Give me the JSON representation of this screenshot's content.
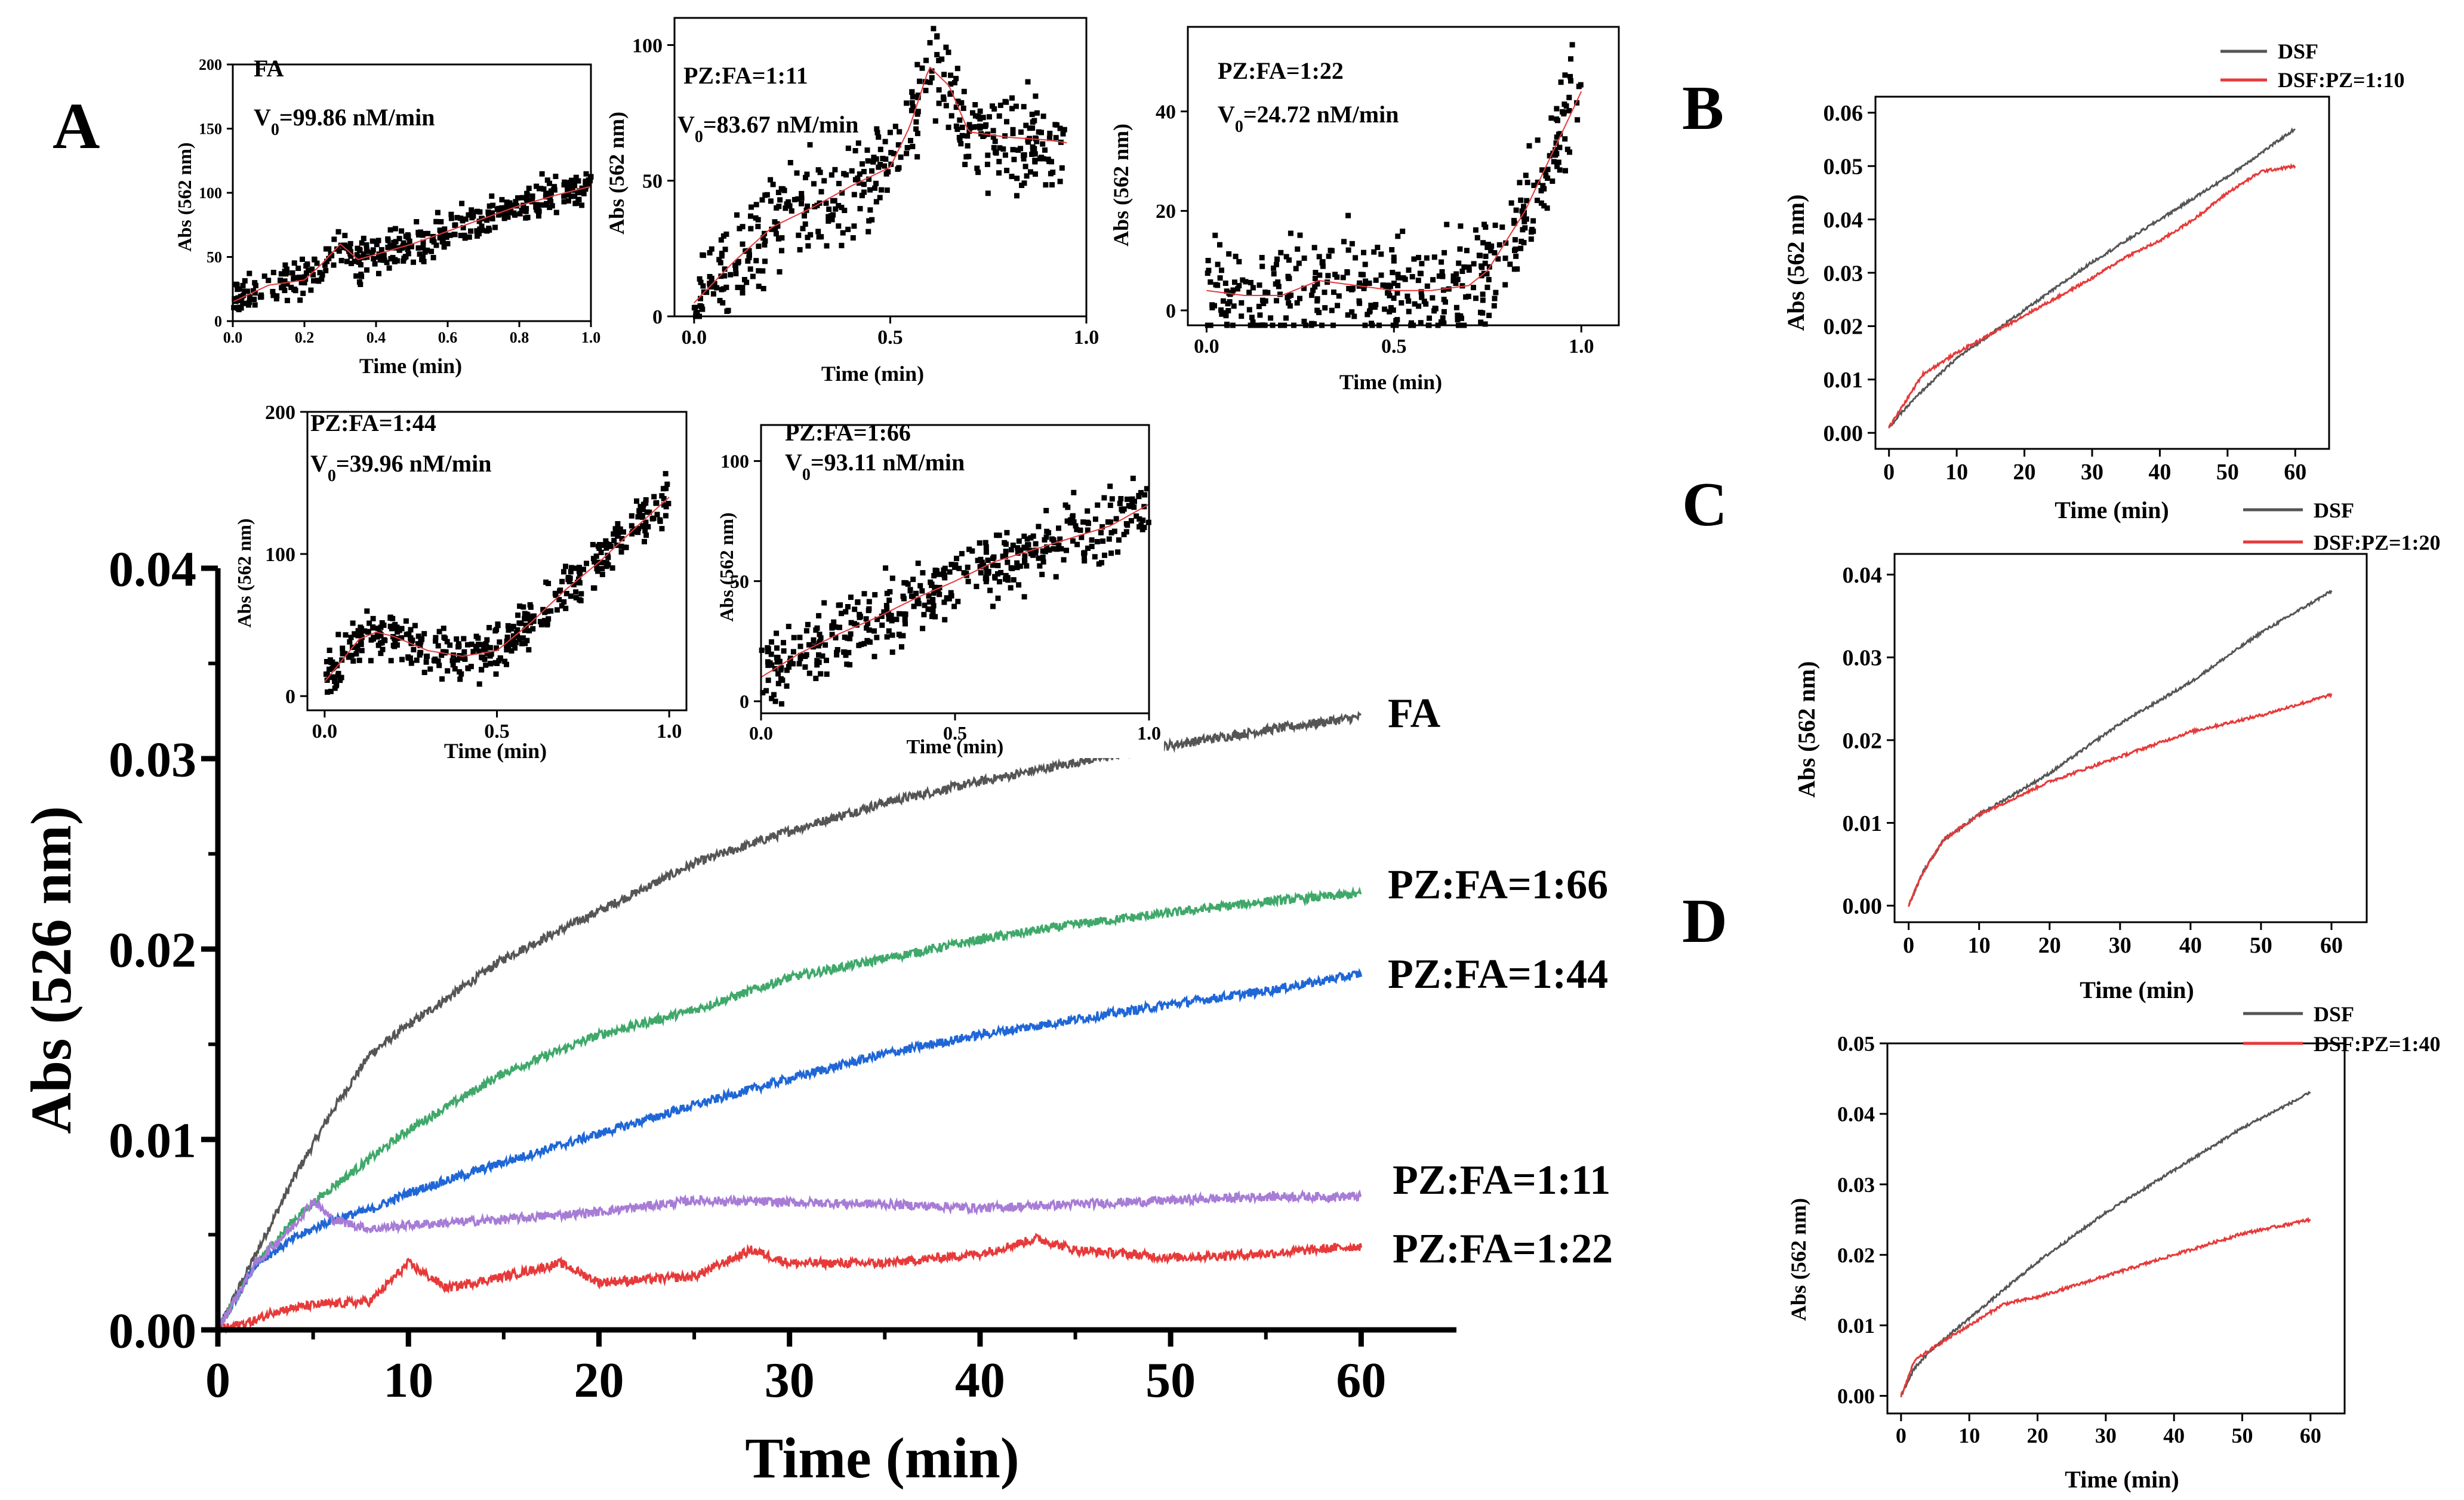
{
  "figure": {
    "panel_labels": [
      "A",
      "B",
      "C",
      "D"
    ]
  },
  "chart_data": [
    {
      "id": "main",
      "type": "line",
      "title": "",
      "xlabel": "Time (min)",
      "ylabel": "Abs (526 nm)",
      "xlim": [
        0,
        65
      ],
      "ylim": [
        0,
        0.04
      ],
      "xticks": [
        "0",
        "10",
        "20",
        "30",
        "40",
        "50",
        "60"
      ],
      "yticks": [
        "0.00",
        "0.01",
        "0.02",
        "0.03",
        "0.04"
      ],
      "series": [
        {
          "name": "FA",
          "color": "#555555",
          "x": [
            0,
            2,
            4,
            6,
            8,
            10,
            15,
            20,
            25,
            30,
            35,
            40,
            45,
            50,
            55,
            60
          ],
          "y": [
            0,
            0.004,
            0.008,
            0.0115,
            0.0145,
            0.016,
            0.0195,
            0.022,
            0.0245,
            0.0262,
            0.0277,
            0.0288,
            0.0298,
            0.0307,
            0.0315,
            0.0322
          ]
        },
        {
          "name": "PZ:FA=1:66",
          "color": "#3fa86a",
          "x": [
            0,
            2,
            4,
            6,
            8,
            10,
            15,
            20,
            25,
            30,
            35,
            40,
            45,
            50,
            55,
            60
          ],
          "y": [
            0,
            0.0035,
            0.0058,
            0.0075,
            0.009,
            0.0105,
            0.0135,
            0.0155,
            0.0168,
            0.0185,
            0.0195,
            0.0205,
            0.0213,
            0.0219,
            0.0225,
            0.0229
          ]
        },
        {
          "name": "PZ:FA=1:44",
          "color": "#1f66d6",
          "x": [
            0,
            2,
            4,
            6,
            8,
            10,
            15,
            20,
            25,
            30,
            35,
            40,
            45,
            50,
            55,
            60
          ],
          "y": [
            0,
            0.0035,
            0.0048,
            0.0058,
            0.0063,
            0.0072,
            0.0088,
            0.0103,
            0.0118,
            0.0132,
            0.0145,
            0.0155,
            0.0163,
            0.0171,
            0.0178,
            0.0187
          ]
        },
        {
          "name": "PZ:FA=1:11",
          "color": "#a77cd6",
          "x": [
            0,
            2,
            4,
            5,
            6,
            8,
            10,
            15,
            20,
            25,
            30,
            35,
            40,
            45,
            50,
            55,
            60
          ],
          "y": [
            0,
            0.0035,
            0.0055,
            0.0068,
            0.0058,
            0.0053,
            0.0055,
            0.0058,
            0.0062,
            0.0068,
            0.0067,
            0.0066,
            0.0064,
            0.0066,
            0.0068,
            0.007,
            0.007
          ]
        },
        {
          "name": "PZ:FA=1:22",
          "color": "#e63a3a",
          "x": [
            0,
            2,
            3,
            5,
            8,
            10,
            12,
            15,
            18,
            20,
            25,
            28,
            30,
            35,
            40,
            43,
            45,
            50,
            55,
            60
          ],
          "y": [
            0,
            0.0005,
            0.001,
            0.0013,
            0.0015,
            0.0035,
            0.0022,
            0.0028,
            0.0035,
            0.0025,
            0.0028,
            0.0042,
            0.0035,
            0.0035,
            0.004,
            0.0048,
            0.0042,
            0.0038,
            0.004,
            0.0044
          ]
        }
      ],
      "labels": [
        "FA",
        "PZ:FA=1:66",
        "PZ:FA=1:44",
        "PZ:FA=1:11",
        "PZ:FA=1:22"
      ]
    },
    {
      "id": "inset_fa",
      "type": "scatter",
      "title": "FA",
      "annotation_prefix": "V",
      "annotation_sub": "0",
      "annotation_value": "=99.86 nM/min",
      "xlabel": "Time (min)",
      "ylabel": "Abs (562 nm)",
      "xlim": [
        0,
        1
      ],
      "ylim": [
        0,
        200
      ],
      "xticks": [
        "0.0",
        "0.2",
        "0.4",
        "0.6",
        "0.8",
        "1.0"
      ],
      "yticks": [
        "0",
        "50",
        "100",
        "150",
        "200"
      ],
      "trend_x": [
        0,
        0.1,
        0.2,
        0.25,
        0.3,
        0.35,
        0.4,
        0.5,
        0.6,
        0.7,
        0.8,
        0.9,
        1.0
      ],
      "trend_y": [
        15,
        28,
        32,
        45,
        60,
        48,
        52,
        60,
        70,
        80,
        90,
        98,
        105
      ],
      "noise": 9
    },
    {
      "id": "inset_11",
      "type": "scatter",
      "title": "PZ:FA=1:11",
      "annotation_prefix": "V",
      "annotation_sub": "0",
      "annotation_value": "=83.67 nM/min",
      "xlabel": "Time (min)",
      "ylabel": "Abs (562 nm)",
      "xlim": [
        -0.05,
        1.0
      ],
      "ylim": [
        0,
        110
      ],
      "xticks": [
        "0.0",
        "0.5",
        "1.0"
      ],
      "yticks": [
        "0",
        "50",
        "100"
      ],
      "tick_values_x": [
        0,
        0.5,
        1.0
      ],
      "tick_values_y": [
        0,
        50,
        100
      ],
      "trend_x": [
        0,
        0.1,
        0.2,
        0.3,
        0.4,
        0.5,
        0.55,
        0.6,
        0.65,
        0.7,
        0.8,
        0.9,
        0.95
      ],
      "trend_y": [
        5,
        20,
        33,
        40,
        48,
        55,
        70,
        92,
        85,
        68,
        66,
        65,
        64
      ],
      "noise": 11
    },
    {
      "id": "inset_22",
      "type": "scatter",
      "title": "PZ:FA=1:22",
      "annotation_prefix": "V",
      "annotation_sub": "0",
      "annotation_value": "=24.72 nM/min",
      "xlabel": "Time (min)",
      "ylabel": "Abs (562 nm)",
      "xlim": [
        -0.05,
        1.1
      ],
      "ylim": [
        -3,
        57
      ],
      "xticks": [
        "0.0",
        "0.5",
        "1.0"
      ],
      "yticks": [
        "0",
        "20",
        "40"
      ],
      "tick_values_x": [
        0,
        0.5,
        1.0
      ],
      "tick_values_y": [
        0,
        20,
        40
      ],
      "trend_x": [
        0,
        0.1,
        0.2,
        0.3,
        0.4,
        0.5,
        0.6,
        0.7,
        0.75,
        0.8,
        0.85,
        0.9,
        0.95,
        1.0
      ],
      "trend_y": [
        4,
        3,
        3,
        6,
        5,
        4,
        4,
        5,
        8,
        14,
        20,
        28,
        36,
        44
      ],
      "noise": 7
    },
    {
      "id": "inset_44",
      "type": "scatter",
      "title": "PZ:FA=1:44",
      "annotation_prefix": "V",
      "annotation_sub": "0",
      "annotation_value": "=39.96 nM/min",
      "xlabel": "Time (min)",
      "ylabel": "Abs (562 nm)",
      "xlim": [
        -0.05,
        1.05
      ],
      "ylim": [
        -10,
        200
      ],
      "xticks": [
        "0.0",
        "0.5",
        "1.0"
      ],
      "yticks": [
        "0",
        "100",
        "200"
      ],
      "tick_values_x": [
        0,
        0.5,
        1.0
      ],
      "tick_values_y": [
        0,
        100,
        200
      ],
      "trend_x": [
        0,
        0.05,
        0.1,
        0.15,
        0.2,
        0.3,
        0.4,
        0.5,
        0.6,
        0.7,
        0.8,
        0.9,
        1.0
      ],
      "trend_y": [
        10,
        25,
        40,
        45,
        42,
        32,
        28,
        32,
        52,
        75,
        95,
        118,
        140
      ],
      "noise": 10
    },
    {
      "id": "inset_66",
      "type": "scatter",
      "title": "PZ:FA=1:66",
      "annotation_prefix": "V",
      "annotation_sub": "0",
      "annotation_value": "=93.11 nM/min",
      "xlabel": "Time (min)",
      "ylabel": "Abs (562 nm)",
      "xlim": [
        0,
        1.0
      ],
      "ylim": [
        -5,
        115
      ],
      "xticks": [
        "0.0",
        "0.5",
        "1.0"
      ],
      "yticks": [
        "0",
        "50",
        "100"
      ],
      "tick_values_x": [
        0,
        0.5,
        1.0
      ],
      "tick_values_y": [
        0,
        50,
        100
      ],
      "trend_x": [
        0,
        0.1,
        0.2,
        0.3,
        0.4,
        0.5,
        0.6,
        0.7,
        0.8,
        0.9,
        1.0
      ],
      "trend_y": [
        10,
        20,
        28,
        35,
        43,
        50,
        58,
        63,
        68,
        73,
        82
      ],
      "noise": 9
    },
    {
      "id": "panel_b",
      "type": "line",
      "xlabel": "Time (min)",
      "ylabel": "Abs (562 nm)",
      "xlim": [
        -2,
        65
      ],
      "ylim": [
        -0.003,
        0.063
      ],
      "xticks": [
        "0",
        "10",
        "20",
        "30",
        "40",
        "50",
        "60"
      ],
      "yticks": [
        "0.00",
        "0.01",
        "0.02",
        "0.03",
        "0.04",
        "0.05",
        "0.06"
      ],
      "series": [
        {
          "name": "DSF",
          "color": "#555555",
          "x": [
            0,
            2,
            5,
            10,
            20,
            30,
            40,
            50,
            60
          ],
          "y": [
            0.001,
            0.004,
            0.008,
            0.014,
            0.023,
            0.032,
            0.04,
            0.048,
            0.057
          ]
        },
        {
          "name": "DSF:PZ=1:10",
          "color": "#e63a3a",
          "x": [
            0,
            2,
            5,
            10,
            20,
            30,
            35,
            40,
            45,
            50,
            55,
            60
          ],
          "y": [
            0.001,
            0.005,
            0.011,
            0.015,
            0.022,
            0.029,
            0.033,
            0.036,
            0.04,
            0.045,
            0.049,
            0.05
          ]
        }
      ]
    },
    {
      "id": "panel_c",
      "type": "line",
      "xlabel": "Time (min)",
      "ylabel": "Abs (562 nm)",
      "xlim": [
        -2,
        65
      ],
      "ylim": [
        -0.002,
        0.0425
      ],
      "xticks": [
        "0",
        "10",
        "20",
        "30",
        "40",
        "50",
        "60"
      ],
      "yticks": [
        "0.00",
        "0.01",
        "0.02",
        "0.03",
        "0.04"
      ],
      "series": [
        {
          "name": "DSF",
          "color": "#555555",
          "x": [
            0,
            2,
            5,
            10,
            20,
            30,
            40,
            50,
            60
          ],
          "y": [
            0,
            0.004,
            0.008,
            0.011,
            0.016,
            0.022,
            0.027,
            0.033,
            0.038
          ]
        },
        {
          "name": "DSF:PZ=1:20",
          "color": "#e63a3a",
          "x": [
            0,
            2,
            5,
            10,
            20,
            30,
            40,
            50,
            60
          ],
          "y": [
            0,
            0.004,
            0.008,
            0.011,
            0.015,
            0.018,
            0.021,
            0.023,
            0.0255
          ]
        }
      ]
    },
    {
      "id": "panel_d",
      "type": "line",
      "xlabel": "Time (min)",
      "ylabel": "Abs (562 nm)",
      "xlim": [
        -2,
        65
      ],
      "ylim": [
        -0.0025,
        0.05
      ],
      "xticks": [
        "0",
        "10",
        "20",
        "30",
        "40",
        "50",
        "60"
      ],
      "yticks": [
        "0.00",
        "0.01",
        "0.02",
        "0.03",
        "0.04",
        "0.05"
      ],
      "series": [
        {
          "name": "DSF",
          "color": "#555555",
          "x": [
            0,
            2,
            5,
            10,
            20,
            30,
            40,
            50,
            60
          ],
          "y": [
            0,
            0.004,
            0.007,
            0.011,
            0.019,
            0.026,
            0.032,
            0.038,
            0.043
          ]
        },
        {
          "name": "DSF:PZ=1:40",
          "color": "#e63a3a",
          "x": [
            0,
            2,
            5,
            10,
            15,
            20,
            30,
            40,
            50,
            60
          ],
          "y": [
            0,
            0.005,
            0.007,
            0.01,
            0.013,
            0.014,
            0.017,
            0.02,
            0.023,
            0.025
          ]
        }
      ]
    }
  ]
}
